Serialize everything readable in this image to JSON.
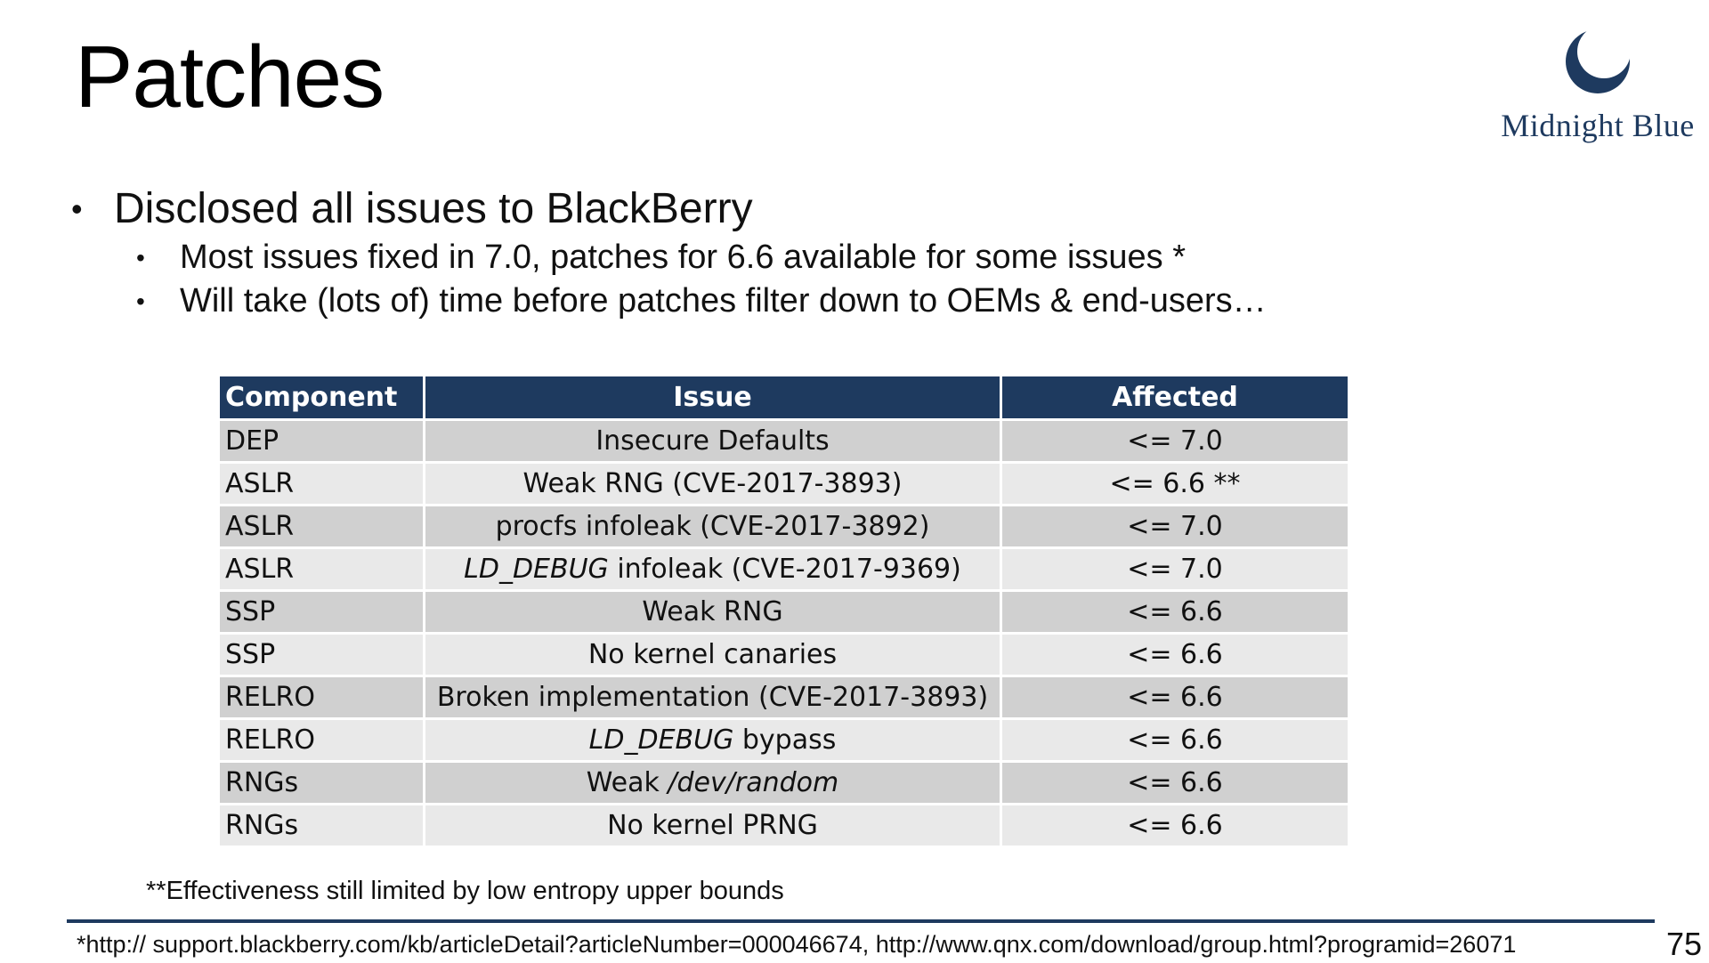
{
  "slide": {
    "title": "Patches",
    "page_number": "75"
  },
  "logo": {
    "text": "Midnight Blue",
    "icon": "crescent-moon-icon",
    "color": "#1e3a5f"
  },
  "bullets": {
    "main": "Disclosed all issues to BlackBerry",
    "sub": [
      "Most issues fixed in 7.0, patches for 6.6 available for some issues *",
      "Will take (lots of) time before patches filter down to OEMs & end-users…"
    ]
  },
  "table": {
    "headers": [
      "Component",
      "Issue",
      "Affected"
    ],
    "rows": [
      {
        "component": "DEP",
        "issue_pre": "",
        "issue_italic": "",
        "issue_post": "Insecure Defaults",
        "affected": "<= 7.0"
      },
      {
        "component": "ASLR",
        "issue_pre": "",
        "issue_italic": "",
        "issue_post": "Weak RNG (CVE-2017-3893)",
        "affected": "<= 6.6 **"
      },
      {
        "component": "ASLR",
        "issue_pre": "",
        "issue_italic": "",
        "issue_post": "procfs infoleak (CVE-2017-3892)",
        "affected": "<= 7.0"
      },
      {
        "component": "ASLR",
        "issue_pre": "",
        "issue_italic": "LD_DEBUG",
        "issue_post": " infoleak (CVE-2017-9369)",
        "affected": "<= 7.0"
      },
      {
        "component": "SSP",
        "issue_pre": "",
        "issue_italic": "",
        "issue_post": "Weak RNG",
        "affected": "<= 6.6"
      },
      {
        "component": "SSP",
        "issue_pre": "",
        "issue_italic": "",
        "issue_post": "No kernel canaries",
        "affected": "<= 6.6"
      },
      {
        "component": "RELRO",
        "issue_pre": "",
        "issue_italic": "",
        "issue_post": "Broken implementation (CVE-2017-3893)",
        "affected": "<= 6.6"
      },
      {
        "component": "RELRO",
        "issue_pre": "",
        "issue_italic": "LD_DEBUG",
        "issue_post": " bypass",
        "affected": "<= 6.6"
      },
      {
        "component": "RNGs",
        "issue_pre": "Weak ",
        "issue_italic": "/dev/random",
        "issue_post": "",
        "affected": "<= 6.6"
      },
      {
        "component": "RNGs",
        "issue_pre": "",
        "issue_italic": "",
        "issue_post": "No kernel PRNG",
        "affected": "<= 6.6"
      }
    ],
    "header_color": "#1e3a5f",
    "row_colors": [
      "#d0d0d0",
      "#e9e9e9"
    ]
  },
  "footnote": "**Effectiveness still limited by low entropy upper bounds",
  "source": "*http:// support.blackberry.com/kb/articleDetail?articleNumber=000046674, http://www.qnx.com/download/group.html?programid=26071"
}
